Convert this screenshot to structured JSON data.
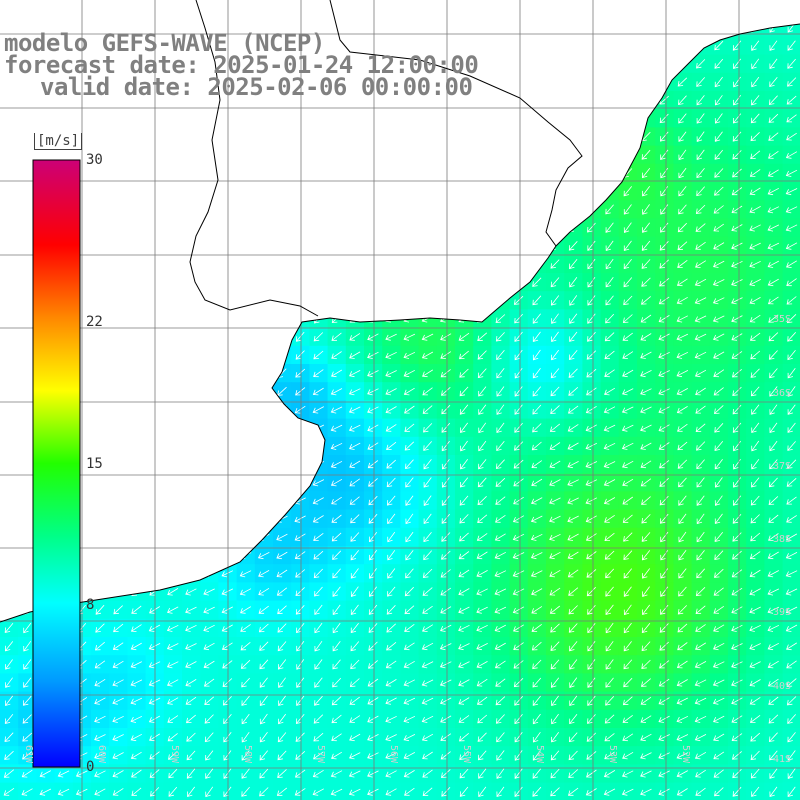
{
  "header": {
    "title": "modelo GEFS-WAVE (NCEP)",
    "forecast_label": "forecast date: 2025-01-24 12:00:00",
    "valid_label": "valid date: 2025-02-06 00:00:00"
  },
  "colorbar": {
    "unit": "[m/s]",
    "ticks": [
      "30",
      "22",
      "15",
      "8",
      "0"
    ],
    "tick_values": [
      30,
      22,
      15,
      8,
      0
    ],
    "range": [
      0,
      30
    ],
    "colors": [
      "#0000ff",
      "#00aaff",
      "#00ffff",
      "#00ff66",
      "#33ff00",
      "#ffff00",
      "#ff8800",
      "#ff0000",
      "#cc0066"
    ]
  },
  "axes": {
    "lat_labels": [
      "35S",
      "36S",
      "37S",
      "38S",
      "39S",
      "40S",
      "41S"
    ],
    "lon_labels": [
      "61W",
      "60W",
      "59W",
      "58W",
      "57W",
      "56W",
      "55W",
      "54W",
      "53W",
      "52W"
    ]
  },
  "colors": {
    "land": "#ffffff",
    "coast": "#000000",
    "grid": "#808080",
    "arrows": "#ffffff",
    "title": "#808080"
  }
}
